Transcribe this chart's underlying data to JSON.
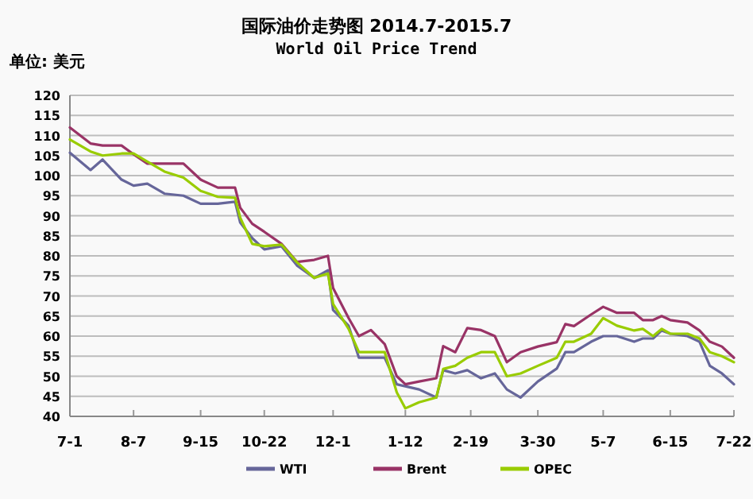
{
  "chart_data": {
    "type": "line",
    "title": "国际油价走势图 2014.7-2015.7",
    "subtitle": "World Oil Price Trend",
    "ylabel": "单位: 美元",
    "x": [
      "2014-07-01",
      "2014-07-13",
      "2014-07-20",
      "2014-07-31",
      "2014-08-07",
      "2014-08-15",
      "2014-08-25",
      "2014-09-05",
      "2014-09-15",
      "2014-09-25",
      "2014-10-05",
      "2014-10-08",
      "2014-10-15",
      "2014-10-22",
      "2014-11-01",
      "2014-11-10",
      "2014-11-20",
      "2014-11-28",
      "2014-12-01",
      "2014-12-10",
      "2014-12-16",
      "2014-12-23",
      "2014-12-31",
      "2015-01-07",
      "2015-01-12",
      "2015-01-20",
      "2015-01-30",
      "2015-02-03",
      "2015-02-10",
      "2015-02-17",
      "2015-02-25",
      "2015-03-05",
      "2015-03-12",
      "2015-03-20",
      "2015-03-30",
      "2015-04-10",
      "2015-04-15",
      "2015-04-20",
      "2015-04-30",
      "2015-05-07",
      "2015-05-15",
      "2015-05-25",
      "2015-05-30",
      "2015-06-05",
      "2015-06-10",
      "2015-06-15",
      "2015-06-25",
      "2015-07-02",
      "2015-07-08",
      "2015-07-15",
      "2015-07-22"
    ],
    "series": [
      {
        "name": "WTI",
        "color": "#66669a",
        "values": [
          105.7,
          101.4,
          104,
          99,
          97.5,
          98,
          95.5,
          95,
          93,
          93,
          93.5,
          88.3,
          84.4,
          81.6,
          82.4,
          77.6,
          74.5,
          76.4,
          66.5,
          62.6,
          54.6,
          54.6,
          54.6,
          48,
          47.5,
          46.7,
          44.7,
          51.5,
          50.7,
          51.5,
          49.5,
          50.7,
          46.7,
          44.7,
          48.7,
          51.9,
          56,
          56,
          58.6,
          60,
          60,
          58.6,
          59.4,
          59.4,
          61.4,
          60.6,
          60,
          58.6,
          52.6,
          50.7,
          48
        ]
      },
      {
        "name": "Brent",
        "color": "#993366",
        "values": [
          112,
          108,
          107.5,
          107.5,
          105.3,
          103,
          103,
          103,
          99,
          97,
          97,
          92,
          88,
          86,
          83,
          78.5,
          79,
          80,
          72,
          64.5,
          60,
          61.5,
          58,
          50,
          48,
          48.7,
          49.5,
          57.5,
          56,
          62,
          61.5,
          60,
          53.5,
          56,
          57.4,
          58.5,
          63,
          62.5,
          65.4,
          67.3,
          65.8,
          65.8,
          64,
          64,
          65,
          64,
          63.4,
          61.4,
          58.6,
          57.4,
          54.6
        ]
      },
      {
        "name": "OPEC",
        "color": "#99cc00",
        "values": [
          109,
          106,
          105,
          105.5,
          105.5,
          103.5,
          101,
          99.5,
          96.2,
          94.7,
          94.5,
          89.5,
          83,
          82.4,
          82.8,
          78.4,
          74.5,
          75.6,
          68,
          61.8,
          56,
          56,
          56,
          46,
          42,
          43.5,
          44.7,
          51.8,
          52.6,
          54.6,
          56,
          56,
          50,
          50.7,
          52.6,
          54.6,
          58.6,
          58.6,
          60.6,
          64.5,
          62.6,
          61.4,
          61.8,
          60,
          61.8,
          60.6,
          60.6,
          59.4,
          56,
          55,
          53.5
        ]
      }
    ],
    "xlim": [
      "2014-07-01",
      "2015-07-22"
    ],
    "xticks": [
      {
        "value": "2014-07-01",
        "label": "7-1"
      },
      {
        "value": "2014-08-07",
        "label": "8-7"
      },
      {
        "value": "2014-09-15",
        "label": "9-15"
      },
      {
        "value": "2014-10-22",
        "label": "10-22"
      },
      {
        "value": "2014-12-01",
        "label": "12-1"
      },
      {
        "value": "2015-01-12",
        "label": "1-12"
      },
      {
        "value": "2015-02-19",
        "label": "2-19"
      },
      {
        "value": "2015-03-30",
        "label": "3-30"
      },
      {
        "value": "2015-05-07",
        "label": "5-7"
      },
      {
        "value": "2015-06-15",
        "label": "6-15"
      },
      {
        "value": "2015-07-22",
        "label": "7-22"
      }
    ],
    "ylim": [
      40,
      120
    ],
    "yticks": [
      40,
      45,
      50,
      55,
      60,
      65,
      70,
      75,
      80,
      85,
      90,
      95,
      100,
      105,
      110,
      115,
      120
    ],
    "grid": "y",
    "legend": "bottom",
    "marker": "none",
    "line_style": "solid"
  }
}
